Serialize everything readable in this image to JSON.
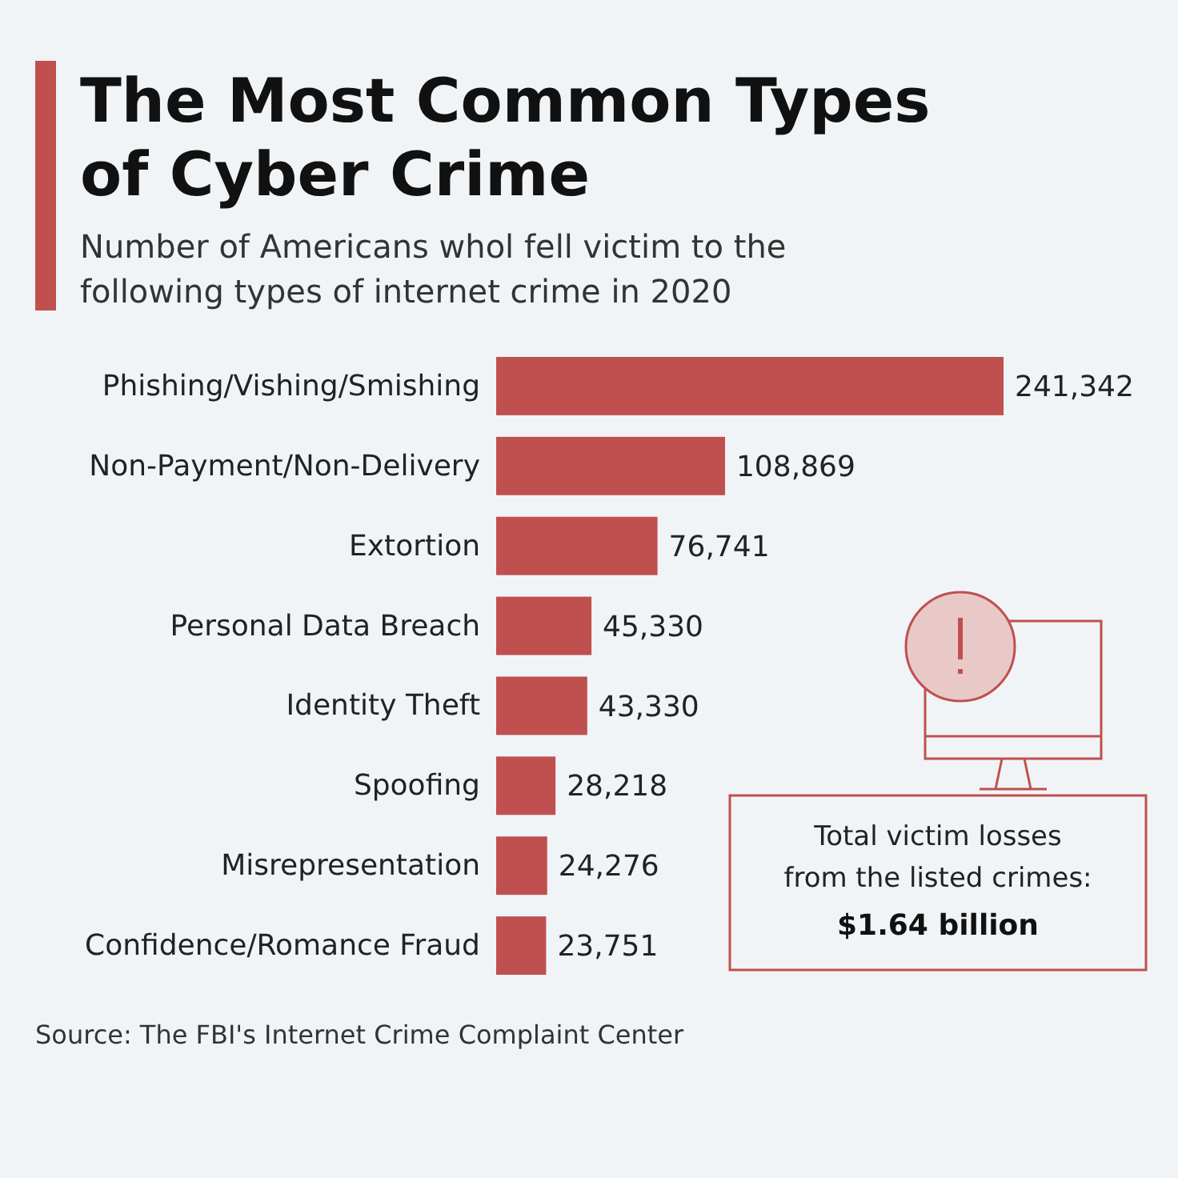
{
  "chart_data": {
    "type": "bar",
    "orientation": "horizontal",
    "title": "The Most Common Types of Cyber Crime",
    "subtitle": "Number of Americans whol fell victim to the following types of internet crime in 2020",
    "categories": [
      "Phishing/Vishing/Smishing",
      "Non-Payment/Non-Delivery",
      "Extortion",
      "Personal Data Breach",
      "Identity Theft",
      "Spoofing",
      "Misrepresentation",
      "Confidence/Romance Fraud"
    ],
    "values": [
      241342,
      108869,
      76741,
      45330,
      43330,
      28218,
      24276,
      23751
    ],
    "color": "#c0504f",
    "value_labels": [
      "241,342",
      "108,869",
      "76,741",
      "45,330",
      "43,330",
      "28,218",
      "24,276",
      "23,751"
    ],
    "annotations": [
      "Total victim losses from the listed crimes:",
      "$1.64 billion",
      "Source: The FBI's Internet Crime Complaint Center"
    ]
  }
}
